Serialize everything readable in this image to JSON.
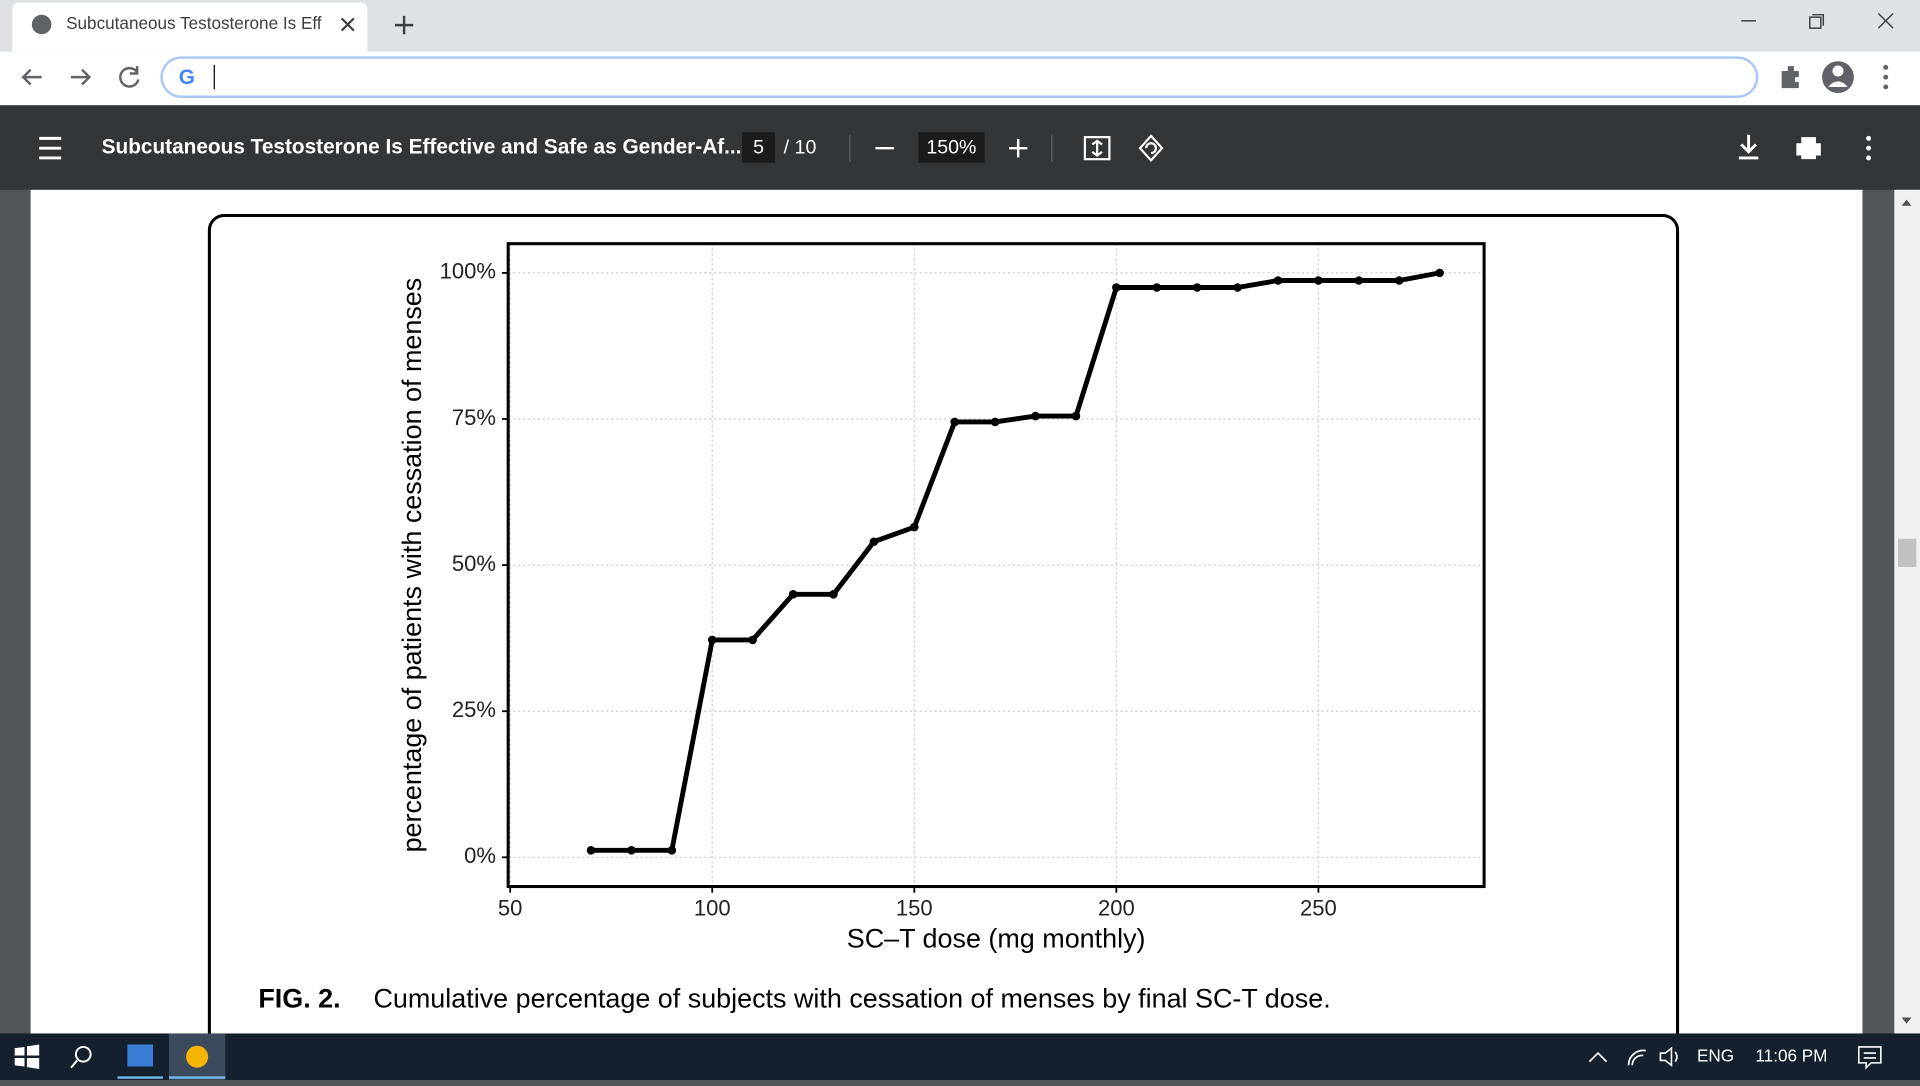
{
  "browser": {
    "tab_title": "Subcutaneous Testosterone Is Eff",
    "pdf_title": "Subcutaneous Testosterone Is Effective and Safe as Gender-Af...",
    "page": "5",
    "page_count": "/ 10",
    "zoom": "150%"
  },
  "chart_data": {
    "type": "line",
    "x_label": "SC–T dose (mg monthly)",
    "y_label": "percentage of patients with cessation of menses",
    "x": [
      70,
      80,
      90,
      100,
      110,
      120,
      130,
      140,
      150,
      160,
      170,
      180,
      190,
      200,
      210,
      220,
      230,
      240,
      250,
      260,
      270,
      280
    ],
    "values": [
      1.2,
      1.2,
      1.2,
      37.2,
      37.2,
      45,
      45,
      54,
      56.5,
      74.5,
      74.5,
      75.5,
      75.5,
      97.5,
      97.5,
      97.5,
      97.5,
      98.7,
      98.7,
      98.7,
      98.7,
      100
    ],
    "color": "#000000",
    "markers": true,
    "xlim": [
      49.5,
      291
    ],
    "xticks": [
      50,
      100,
      150,
      200,
      250
    ],
    "ylim": [
      -5,
      105
    ],
    "yticks": [
      {
        "value": 0,
        "label": "0%"
      },
      {
        "value": 25,
        "label": "25%"
      },
      {
        "value": 50,
        "label": "50%"
      },
      {
        "value": 75,
        "label": "75%"
      },
      {
        "value": 100,
        "label": "100%"
      }
    ],
    "grid": true,
    "caption_label": "FIG. 2.",
    "caption": "Cumulative percentage of subjects with cessation of menses by final SC-T dose."
  },
  "taskbar": {
    "language": "ENG",
    "time": "11:06 PM"
  }
}
